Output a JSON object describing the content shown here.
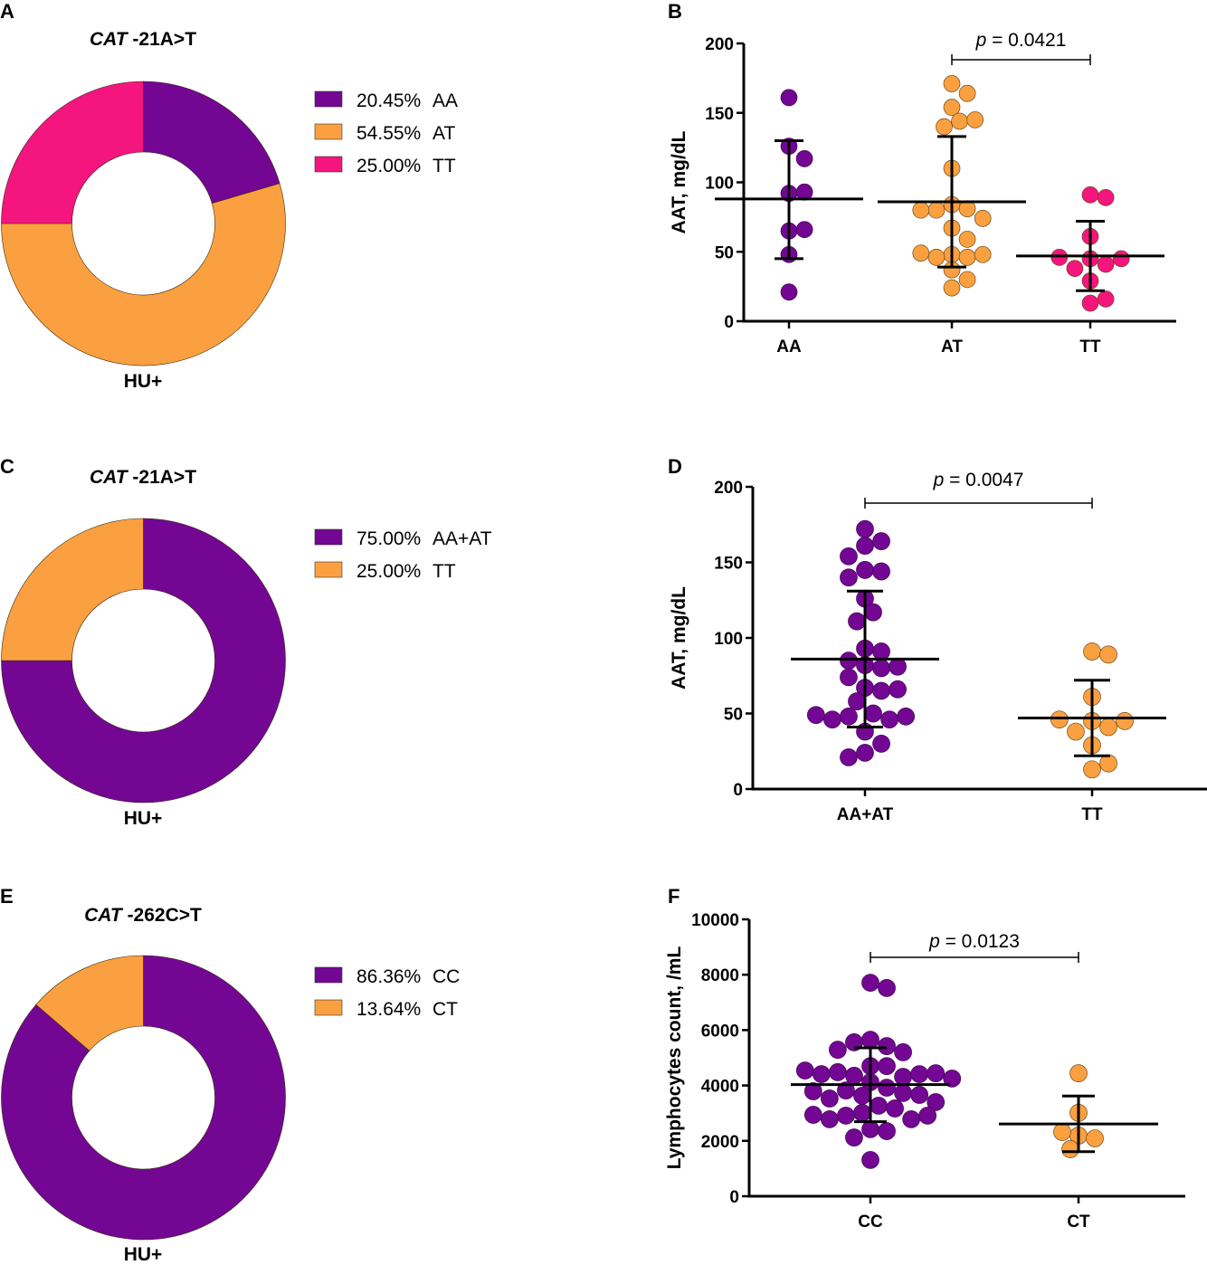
{
  "colors": {
    "purple": "#730793",
    "orange": "#FBA040",
    "pink": "#F5157E"
  },
  "chart_data": [
    {
      "panel": "A",
      "type": "pie",
      "variant": "donut",
      "title_gene": "CAT",
      "title_variant": " -21A>T",
      "group_label": "HU+",
      "legend_placement": "right",
      "slices": [
        {
          "label": "AA",
          "percent": 20.45,
          "percent_label": "20.45%",
          "color_key": "purple"
        },
        {
          "label": "AT",
          "percent": 54.55,
          "percent_label": "54.55%",
          "color_key": "orange"
        },
        {
          "label": "TT",
          "percent": 25.0,
          "percent_label": "25.00%",
          "color_key": "pink"
        }
      ]
    },
    {
      "panel": "B",
      "type": "scatter",
      "variant": "dot-plot-mean-sd",
      "ylabel": "AAT, mg/dL",
      "ylim": [
        0,
        200
      ],
      "yticks": [
        0,
        50,
        100,
        150,
        200
      ],
      "categories": [
        "AA",
        "AT",
        "TT"
      ],
      "series": [
        {
          "name": "AA",
          "color_key": "purple",
          "mean": 88,
          "sd_upper": 130,
          "sd_lower": 45,
          "values": [
            161,
            126,
            117,
            92,
            93,
            65,
            66,
            48,
            21
          ]
        },
        {
          "name": "AT",
          "color_key": "orange",
          "mean": 86,
          "sd_upper": 133,
          "sd_lower": 39,
          "values": [
            171,
            164,
            154,
            144,
            140,
            145,
            110,
            84,
            81,
            80,
            74,
            80,
            67,
            59,
            48,
            46,
            46,
            48,
            49,
            37,
            30,
            24
          ]
        },
        {
          "name": "TT",
          "color_key": "pink",
          "mean": 47,
          "sd_upper": 72,
          "sd_lower": 22,
          "values": [
            91,
            89,
            61,
            45,
            41,
            38,
            45,
            46,
            29,
            13,
            16
          ]
        }
      ],
      "comparison": {
        "from": "AT",
        "to": "TT",
        "p_prefix": "p",
        "p_text": " = 0.0421"
      }
    },
    {
      "panel": "C",
      "type": "pie",
      "variant": "donut",
      "title_gene": "CAT",
      "title_variant": " -21A>T",
      "group_label": "HU+",
      "legend_placement": "right",
      "slices": [
        {
          "label": "AA+AT",
          "percent": 75.0,
          "percent_label": "75.00%",
          "color_key": "purple"
        },
        {
          "label": "TT",
          "percent": 25.0,
          "percent_label": "25.00%",
          "color_key": "orange"
        }
      ]
    },
    {
      "panel": "D",
      "type": "scatter",
      "variant": "dot-plot-mean-sd",
      "ylabel": "AAT, mg/dL",
      "ylim": [
        0,
        200
      ],
      "yticks": [
        0,
        50,
        100,
        150,
        200
      ],
      "categories": [
        "AA+AT",
        "TT"
      ],
      "series": [
        {
          "name": "AA+AT",
          "color_key": "purple",
          "mean": 86,
          "sd_upper": 131,
          "sd_lower": 41,
          "values": [
            172,
            164,
            161,
            154,
            145,
            144,
            140,
            126,
            117,
            111,
            93,
            91,
            85,
            82,
            80,
            81,
            74,
            67,
            65,
            66,
            58,
            50,
            48,
            46,
            46,
            48,
            49,
            38,
            30,
            24,
            21
          ]
        },
        {
          "name": "TT",
          "color_key": "orange",
          "mean": 47,
          "sd_upper": 72,
          "sd_lower": 22,
          "values": [
            91,
            89,
            61,
            45,
            41,
            38,
            45,
            46,
            29,
            13,
            17
          ]
        }
      ],
      "comparison": {
        "from": "AA+AT",
        "to": "TT",
        "p_prefix": "p",
        "p_text": " = 0.0047"
      }
    },
    {
      "panel": "E",
      "type": "pie",
      "variant": "donut",
      "title_gene": "CAT",
      "title_variant": " -262C>T",
      "group_label": "HU+",
      "legend_placement": "right",
      "slices": [
        {
          "label": "CC",
          "percent": 86.36,
          "percent_label": "86.36%",
          "color_key": "purple"
        },
        {
          "label": "CT",
          "percent": 13.64,
          "percent_label": "13.64%",
          "color_key": "orange"
        }
      ]
    },
    {
      "panel": "F",
      "type": "scatter",
      "variant": "dot-plot-mean-sd",
      "ylabel": "Lymphocytes count, /mL",
      "ylim": [
        0,
        10000
      ],
      "yticks": [
        0,
        2000,
        4000,
        6000,
        8000,
        10000
      ],
      "categories": [
        "CC",
        "CT"
      ],
      "series": [
        {
          "name": "CC",
          "color_key": "purple",
          "mean": 4030,
          "sd_upper": 5360,
          "sd_lower": 2690,
          "values": [
            7710,
            7520,
            5650,
            5420,
            5560,
            5200,
            5290,
            4700,
            4700,
            4350,
            4310,
            4480,
            4410,
            4410,
            4440,
            4540,
            4250,
            4120,
            3920,
            3820,
            3730,
            3630,
            3530,
            3660,
            3790,
            3270,
            3400,
            3170,
            3010,
            2910,
            2780,
            2780,
            2910,
            2940,
            2420,
            2350,
            2120,
            1310
          ]
        },
        {
          "name": "CT",
          "color_key": "orange",
          "mean": 2610,
          "sd_upper": 3620,
          "sd_lower": 1610,
          "values": [
            4440,
            3010,
            2190,
            2090,
            2320,
            1700
          ]
        }
      ],
      "comparison": {
        "from": "CC",
        "to": "CT",
        "p_prefix": "p",
        "p_text": " = 0.0123"
      }
    }
  ]
}
